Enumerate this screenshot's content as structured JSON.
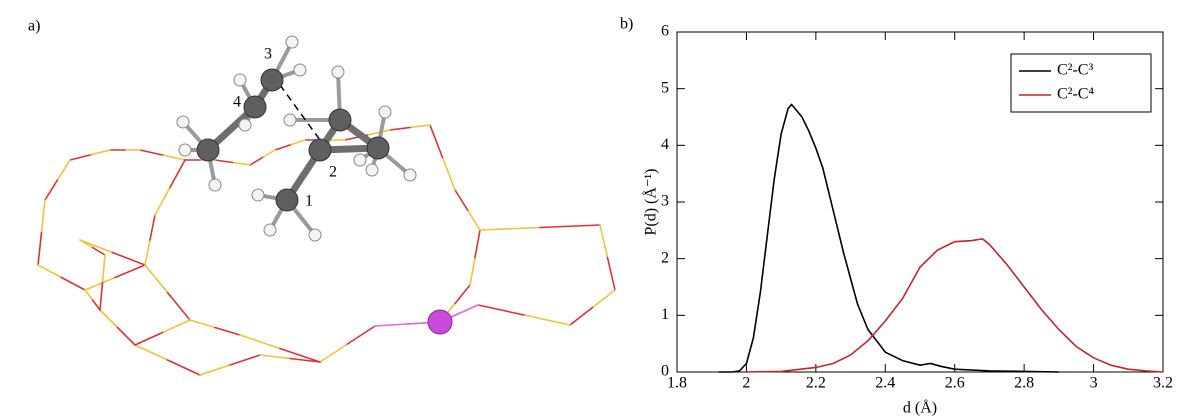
{
  "panel_a": {
    "label": "a)",
    "atom_labels": [
      "1",
      "2",
      "3",
      "4"
    ]
  },
  "chart_data": {
    "type": "line",
    "panel_label": "b)",
    "x_label": "d (Å)",
    "y_label": "P(d) (Å⁻¹)",
    "xlim": [
      1.8,
      3.2
    ],
    "xticks": [
      1.8,
      2,
      2.2,
      2.4,
      2.6,
      2.8,
      3,
      3.2
    ],
    "ylim": [
      0,
      6
    ],
    "yticks": [
      0,
      1,
      2,
      3,
      4,
      5,
      6
    ],
    "legend_position": "top-right",
    "series": [
      {
        "name": "C²-C³",
        "color": "#000000",
        "x": [
          1.92,
          1.96,
          1.98,
          2.0,
          2.02,
          2.04,
          2.06,
          2.08,
          2.1,
          2.12,
          2.13,
          2.14,
          2.16,
          2.18,
          2.2,
          2.22,
          2.24,
          2.26,
          2.28,
          2.3,
          2.32,
          2.35,
          2.4,
          2.45,
          2.5,
          2.53,
          2.56,
          2.6,
          2.7,
          2.8,
          2.9
        ],
        "values": [
          0,
          0,
          0.02,
          0.15,
          0.6,
          1.4,
          2.4,
          3.4,
          4.2,
          4.65,
          4.72,
          4.65,
          4.5,
          4.25,
          3.95,
          3.6,
          3.1,
          2.6,
          2.1,
          1.65,
          1.2,
          0.75,
          0.35,
          0.2,
          0.12,
          0.15,
          0.1,
          0.05,
          0.02,
          0.01,
          0
        ]
      },
      {
        "name": "C²-C⁴",
        "color": "#c0262c",
        "x": [
          2.0,
          2.1,
          2.2,
          2.25,
          2.3,
          2.35,
          2.4,
          2.45,
          2.5,
          2.55,
          2.6,
          2.65,
          2.68,
          2.7,
          2.75,
          2.8,
          2.85,
          2.9,
          2.95,
          3.0,
          3.05,
          3.1,
          3.15,
          3.2
        ],
        "values": [
          0,
          0.01,
          0.08,
          0.15,
          0.3,
          0.55,
          0.9,
          1.3,
          1.85,
          2.15,
          2.3,
          2.32,
          2.35,
          2.25,
          1.9,
          1.5,
          1.1,
          0.75,
          0.45,
          0.25,
          0.12,
          0.05,
          0.02,
          0
        ]
      }
    ]
  }
}
